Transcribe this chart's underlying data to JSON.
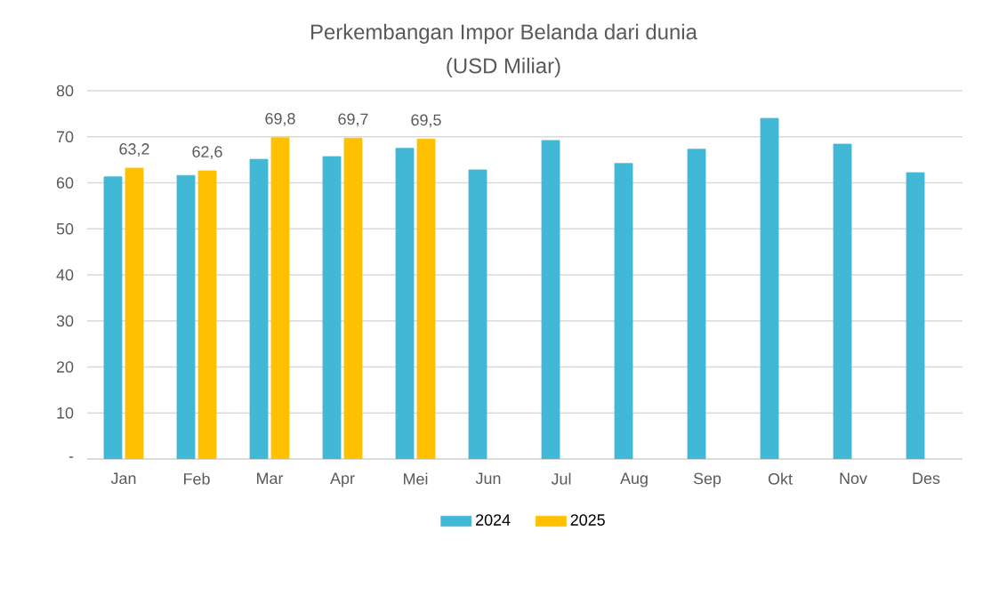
{
  "chart_data": {
    "type": "bar",
    "title": "Perkembangan Impor Belanda dari dunia",
    "subtitle": "(USD Miliar)",
    "categories": [
      "Jan",
      "Feb",
      "Mar",
      "Apr",
      "Mei",
      "Jun",
      "Jul",
      "Aug",
      "Sep",
      "Okt",
      "Nov",
      "Des"
    ],
    "series": [
      {
        "name": "2024",
        "color": "#41b8d5",
        "values": [
          61.3,
          61.6,
          65.1,
          65.7,
          67.5,
          62.8,
          69.2,
          64.2,
          67.3,
          74.0,
          68.4,
          62.2
        ]
      },
      {
        "name": "2025",
        "color": "#ffc000",
        "values": [
          63.2,
          62.6,
          69.8,
          69.7,
          69.5,
          null,
          null,
          null,
          null,
          null,
          null,
          null
        ],
        "value_labels": [
          "63,2",
          "62,6",
          "69,8",
          "69,7",
          "69,5",
          null,
          null,
          null,
          null,
          null,
          null,
          null
        ]
      }
    ],
    "ylim": [
      0,
      80
    ],
    "yticks": [
      {
        "value": 0,
        "label": "-"
      },
      10,
      20,
      30,
      40,
      50,
      60,
      70,
      80
    ],
    "grid": "y",
    "legend": "bottom"
  }
}
